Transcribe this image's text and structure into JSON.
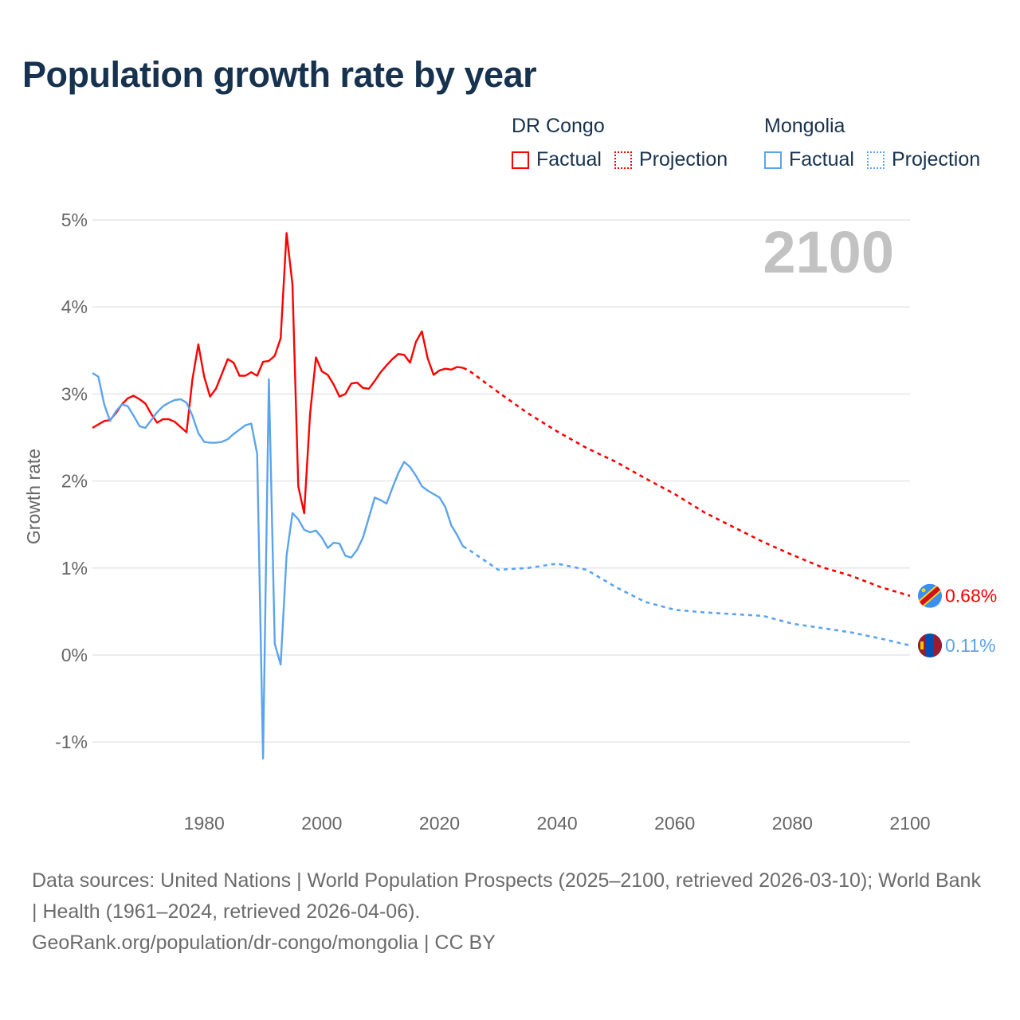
{
  "title": "Population growth rate by year",
  "legend": {
    "groups": [
      {
        "country": "DR Congo",
        "factual": "Factual",
        "projection": "Projection",
        "color": "#ff0000"
      },
      {
        "country": "Mongolia",
        "factual": "Factual",
        "projection": "Projection",
        "color": "#5ba4ec"
      }
    ]
  },
  "year_label": "2100",
  "footer": {
    "sources": "Data sources: United Nations | World Population Prospects (2025–2100, retrieved 2026-03-10); World Bank | Health (1961–2024, retrieved 2026-04-06).",
    "credit": "GeoRank.org/population/dr-congo/mongolia | CC BY"
  },
  "chart_data": {
    "type": "line",
    "title": "Population growth rate by year",
    "xlabel": "",
    "ylabel": "Growth rate",
    "xlim": [
      1961,
      2100
    ],
    "ylim": [
      -1.3,
      5
    ],
    "yticks": [
      5,
      4,
      3,
      2,
      1,
      0,
      -1
    ],
    "ytick_labels": [
      "5%",
      "4%",
      "3%",
      "2%",
      "1%",
      "0%",
      "-1%"
    ],
    "xticks": [
      1980,
      2000,
      2020,
      2040,
      2060,
      2080,
      2100
    ],
    "xtick_labels": [
      "1980",
      "2000",
      "2020",
      "2040",
      "2060",
      "2080",
      "2100"
    ],
    "grid": true,
    "legend_placement": "top-right",
    "series": [
      {
        "name": "DR Congo",
        "color": "#ff0000",
        "end_label": "0.68%",
        "factual": {
          "x": [
            1961,
            1962,
            1963,
            1964,
            1965,
            1966,
            1967,
            1968,
            1969,
            1970,
            1971,
            1972,
            1973,
            1974,
            1975,
            1976,
            1977,
            1978,
            1979,
            1980,
            1981,
            1982,
            1983,
            1984,
            1985,
            1986,
            1987,
            1988,
            1989,
            1990,
            1991,
            1992,
            1993,
            1994,
            1995,
            1996,
            1997,
            1998,
            1999,
            2000,
            2001,
            2002,
            2003,
            2004,
            2005,
            2006,
            2007,
            2008,
            2009,
            2010,
            2011,
            2012,
            2013,
            2014,
            2015,
            2016,
            2017,
            2018,
            2019,
            2020,
            2021,
            2022,
            2023,
            2024
          ],
          "y": [
            2.61,
            2.65,
            2.69,
            2.7,
            2.78,
            2.88,
            2.95,
            2.98,
            2.94,
            2.89,
            2.77,
            2.67,
            2.71,
            2.71,
            2.68,
            2.62,
            2.56,
            3.17,
            3.57,
            3.2,
            2.97,
            3.06,
            3.23,
            3.4,
            3.36,
            3.21,
            3.21,
            3.25,
            3.21,
            3.37,
            3.38,
            3.44,
            3.64,
            4.85,
            4.26,
            1.94,
            1.63,
            2.77,
            3.42,
            3.26,
            3.22,
            3.11,
            2.97,
            3.0,
            3.12,
            3.13,
            3.07,
            3.06,
            3.15,
            3.25,
            3.33,
            3.4,
            3.46,
            3.45,
            3.36,
            3.6,
            3.72,
            3.41,
            3.22,
            3.27,
            3.29,
            3.28,
            3.31,
            3.3
          ]
        },
        "projection": {
          "x": [
            2024,
            2025,
            2030,
            2035,
            2040,
            2045,
            2050,
            2055,
            2060,
            2065,
            2070,
            2075,
            2080,
            2085,
            2090,
            2095,
            2100
          ],
          "y": [
            3.3,
            3.27,
            3.02,
            2.78,
            2.57,
            2.38,
            2.22,
            2.03,
            1.85,
            1.64,
            1.47,
            1.3,
            1.15,
            1.01,
            0.91,
            0.78,
            0.68
          ]
        }
      },
      {
        "name": "Mongolia",
        "color": "#5ba4ec",
        "end_label": "0.11%",
        "factual": {
          "x": [
            1961,
            1962,
            1963,
            1964,
            1965,
            1966,
            1967,
            1968,
            1969,
            1970,
            1971,
            1972,
            1973,
            1974,
            1975,
            1976,
            1977,
            1978,
            1979,
            1980,
            1981,
            1982,
            1983,
            1984,
            1985,
            1986,
            1987,
            1988,
            1989,
            1990,
            1991,
            1992,
            1993,
            1994,
            1995,
            1996,
            1997,
            1998,
            1999,
            2000,
            2001,
            2002,
            2003,
            2004,
            2005,
            2006,
            2007,
            2008,
            2009,
            2010,
            2011,
            2012,
            2013,
            2014,
            2015,
            2016,
            2017,
            2018,
            2019,
            2020,
            2021,
            2022,
            2023,
            2024
          ],
          "y": [
            3.24,
            3.2,
            2.88,
            2.69,
            2.8,
            2.88,
            2.86,
            2.75,
            2.63,
            2.61,
            2.7,
            2.79,
            2.86,
            2.9,
            2.93,
            2.94,
            2.9,
            2.75,
            2.55,
            2.45,
            2.44,
            2.44,
            2.45,
            2.48,
            2.54,
            2.59,
            2.64,
            2.66,
            2.31,
            -1.19,
            3.17,
            0.13,
            -0.11,
            1.14,
            1.63,
            1.56,
            1.44,
            1.41,
            1.43,
            1.35,
            1.23,
            1.29,
            1.28,
            1.14,
            1.12,
            1.21,
            1.35,
            1.58,
            1.81,
            1.78,
            1.74,
            1.92,
            2.09,
            2.22,
            2.16,
            2.06,
            1.94,
            1.89,
            1.85,
            1.81,
            1.7,
            1.49,
            1.38,
            1.25
          ]
        },
        "projection": {
          "x": [
            2024,
            2025,
            2030,
            2035,
            2040,
            2045,
            2050,
            2055,
            2060,
            2065,
            2070,
            2075,
            2080,
            2085,
            2090,
            2095,
            2100
          ],
          "y": [
            1.25,
            1.21,
            0.98,
            1.0,
            1.05,
            0.98,
            0.78,
            0.61,
            0.52,
            0.49,
            0.47,
            0.45,
            0.36,
            0.31,
            0.26,
            0.19,
            0.11
          ]
        }
      }
    ]
  }
}
